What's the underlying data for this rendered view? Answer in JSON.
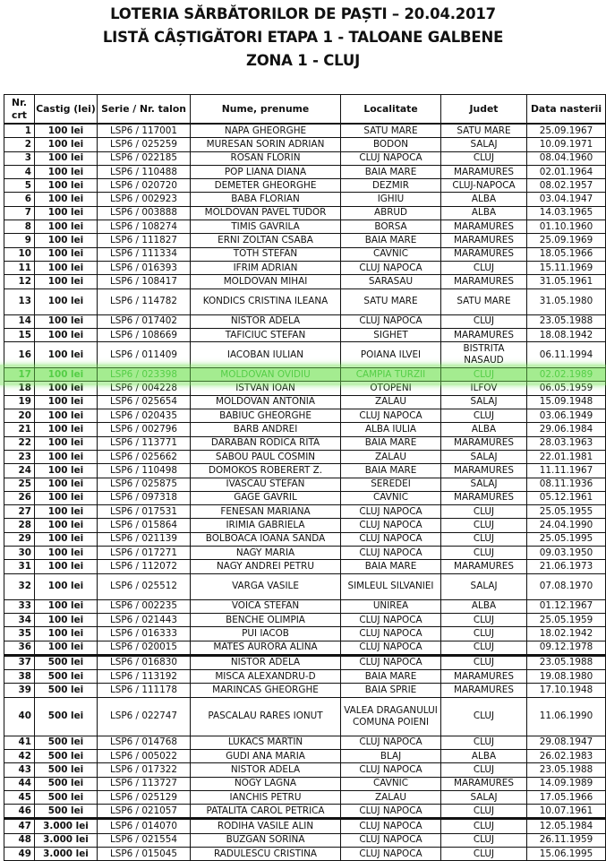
{
  "title": {
    "line1": "LOTERIA SĂRBĂTORILOR DE PAȘTI – 20.04.2017",
    "line2": "LISTĂ CÂȘTIGĂTORI ETAPA 1 - TALOANE GALBENE",
    "line3": "ZONA 1 - CLUJ"
  },
  "highlight": {
    "row_nr": "17",
    "color": "#4cd13a"
  },
  "table": {
    "headers": [
      "Nr. crt",
      "Castig (lei)",
      "Serie / Nr. talon",
      "Nume, prenume",
      "Localitate",
      "Judet",
      "Data nasterii"
    ],
    "rows": [
      [
        "1",
        "100 lei",
        "LSP6 / 117001",
        "NAPA GHEORGHE",
        "SATU MARE",
        "SATU MARE",
        "25.09.1967"
      ],
      [
        "2",
        "100 lei",
        "LSP6 / 025259",
        "MURESAN SORIN ADRIAN",
        "BODON",
        "SALAJ",
        "10.09.1971"
      ],
      [
        "3",
        "100 lei",
        "LSP6 / 022185",
        "ROSAN FLORIN",
        "CLUJ NAPOCA",
        "CLUJ",
        "08.04.1960"
      ],
      [
        "4",
        "100 lei",
        "LSP6 / 110488",
        "POP LIANA DIANA",
        "BAIA MARE",
        "MARAMURES",
        "02.01.1964"
      ],
      [
        "5",
        "100 lei",
        "LSP6 / 020720",
        "DEMETER GHEORGHE",
        "DEZMIR",
        "CLUJ-NAPOCA",
        "08.02.1957"
      ],
      [
        "6",
        "100 lei",
        "LSP6 / 002923",
        "BABA FLORIAN",
        "IGHIU",
        "ALBA",
        "03.04.1947"
      ],
      [
        "7",
        "100 lei",
        "LSP6 / 003888",
        "MOLDOVAN PAVEL TUDOR",
        "ABRUD",
        "ALBA",
        "14.03.1965"
      ],
      [
        "8",
        "100 lei",
        "LSP6 / 108274",
        "TIMIS GAVRILA",
        "BORSA",
        "MARAMURES",
        "01.10.1960"
      ],
      [
        "9",
        "100 lei",
        "LSP6 / 111827",
        "ERNI ZOLTAN CSABA",
        "BAIA MARE",
        "MARAMURES",
        "25.09.1969"
      ],
      [
        "10",
        "100 lei",
        "LSP6 / 111334",
        "TOTH STEFAN",
        "CAVNIC",
        "MARAMURES",
        "18.05.1966"
      ],
      [
        "11",
        "100 lei",
        "LSP6 / 016393",
        "IFRIM ADRIAN",
        "CLUJ NAPOCA",
        "CLUJ",
        "15.11.1969"
      ],
      [
        "12",
        "100 lei",
        "LSP6 / 108417",
        "MOLDOVAN MIHAI",
        "SARASAU",
        "MARAMURES",
        "31.05.1961"
      ],
      [
        "13",
        "100 lei",
        "LSP6 / 114782",
        "KONDICS CRISTINA ILEANA",
        "SATU MARE",
        "SATU MARE",
        "31.05.1980"
      ],
      [
        "14",
        "100 lei",
        "LSP6 / 017402",
        "NISTOR ADELA",
        "CLUJ NAPOCA",
        "CLUJ",
        "23.05.1988"
      ],
      [
        "15",
        "100 lei",
        "LSP6 / 108669",
        "TAFICIUC STEFAN",
        "SIGHET",
        "MARAMURES",
        "18.08.1942"
      ],
      [
        "16",
        "100 lei",
        "LSP6 / 011409",
        "IACOBAN IULIAN",
        "POIANA ILVEI",
        "BISTRITA NASAUD",
        "06.11.1994"
      ],
      [
        "17",
        "100 lei",
        "LSP6 / 023398",
        "MOLDOVAN OVIDIU",
        "CAMPIA TURZII",
        "CLUJ",
        "02.02.1989"
      ],
      [
        "18",
        "100 lei",
        "LSP6 / 004228",
        "ISTVAN IOAN",
        "OTOPENI",
        "ILFOV",
        "06.05.1959"
      ],
      [
        "19",
        "100 lei",
        "LSP6 / 025654",
        "MOLDOVAN ANTONIA",
        "ZALAU",
        "SALAJ",
        "15.09.1948"
      ],
      [
        "20",
        "100 lei",
        "LSP6 / 020435",
        "BABIUC GHEORGHE",
        "CLUJ NAPOCA",
        "CLUJ",
        "03.06.1949"
      ],
      [
        "21",
        "100 lei",
        "LSP6 / 002796",
        "BARB ANDREI",
        "ALBA IULIA",
        "ALBA",
        "29.06.1984"
      ],
      [
        "22",
        "100 lei",
        "LSP6 / 113771",
        "DARABAN RODICA RITA",
        "BAIA MARE",
        "MARAMURES",
        "28.03.1963"
      ],
      [
        "23",
        "100 lei",
        "LSP6 / 025662",
        "SABOU PAUL COSMIN",
        "ZALAU",
        "SALAJ",
        "22.01.1981"
      ],
      [
        "24",
        "100 lei",
        "LSP6 / 110498",
        "DOMOKOS ROBERERT Z.",
        "BAIA MARE",
        "MARAMURES",
        "11.11.1967"
      ],
      [
        "25",
        "100 lei",
        "LSP6 / 025875",
        "IVASCAU STEFAN",
        "SEREDEI",
        "SALAJ",
        "08.11.1936"
      ],
      [
        "26",
        "100 lei",
        "LSP6 / 097318",
        "GAGE GAVRIL",
        "CAVNIC",
        "MARAMURES",
        "05.12.1961"
      ],
      [
        "27",
        "100 lei",
        "LSP6 / 017531",
        "FENESAN MARIANA",
        "CLUJ NAPOCA",
        "CLUJ",
        "25.05.1955"
      ],
      [
        "28",
        "100 lei",
        "LSP6 / 015864",
        "IRIMIA GABRIELA",
        "CLUJ NAPOCA",
        "CLUJ",
        "24.04.1990"
      ],
      [
        "29",
        "100 lei",
        "LSP6 / 021139",
        "BOLBOACA IOANA SANDA",
        "CLUJ NAPOCA",
        "CLUJ",
        "25.05.1995"
      ],
      [
        "30",
        "100 lei",
        "LSP6 / 017271",
        "NAGY MARIA",
        "CLUJ NAPOCA",
        "CLUJ",
        "09.03.1950"
      ],
      [
        "31",
        "100 lei",
        "LSP6 / 112072",
        "NAGY ANDREI PETRU",
        "BAIA MARE",
        "MARAMURES",
        "21.06.1973"
      ],
      [
        "32",
        "100 lei",
        "LSP6 / 025512",
        "VARGA VASILE",
        "SIMLEUL SILVANIEI",
        "SALAJ",
        "07.08.1970"
      ],
      [
        "33",
        "100 lei",
        "LSP6 / 002235",
        "VOICA STEFAN",
        "UNIREA",
        "ALBA",
        "01.12.1967"
      ],
      [
        "34",
        "100 lei",
        "LSP6 / 021443",
        "BENCHE OLIMPIA",
        "CLUJ NAPOCA",
        "CLUJ",
        "25.05.1959"
      ],
      [
        "35",
        "100 lei",
        "LSP6 / 016333",
        "PUI IACOB",
        "CLUJ NAPOCA",
        "CLUJ",
        "18.02.1942"
      ],
      [
        "36",
        "100 lei",
        "LSP6 / 020015",
        "MATES AURORA ALINA",
        "CLUJ NAPOCA",
        "CLUJ",
        "09.12.1978"
      ],
      [
        "37",
        "500 lei",
        "LSP6 / 016830",
        "NISTOR ADELA",
        "CLUJ NAPOCA",
        "CLUJ",
        "23.05.1988"
      ],
      [
        "38",
        "500 lei",
        "LSP6 / 113192",
        "MISCA ALEXANDRU-D",
        "BAIA MARE",
        "MARAMURES",
        "19.08.1980"
      ],
      [
        "39",
        "500 lei",
        "LSP6 / 111178",
        "MARINCAS GHEORGHE",
        "BAIA SPRIE",
        "MARAMURES",
        "17.10.1948"
      ],
      [
        "40",
        "500 lei",
        "LSP6 / 022747",
        "PASCALAU RARES IONUT",
        "VALEA DRAGANULUI COMUNA POIENI",
        "CLUJ",
        "11.06.1990"
      ],
      [
        "41",
        "500 lei",
        "LSP6 / 014768",
        "LUKACS MARTIN",
        "CLUJ NAPOCA",
        "CLUJ",
        "29.08.1947"
      ],
      [
        "42",
        "500 lei",
        "LSP6 / 005022",
        "GUDI ANA MARIA",
        "BLAJ",
        "ALBA",
        "26.02.1983"
      ],
      [
        "43",
        "500 lei",
        "LSP6 / 017322",
        "NISTOR ADELA",
        "CLUJ NAPOCA",
        "CLUJ",
        "23.05.1988"
      ],
      [
        "44",
        "500 lei",
        "LSP6 / 113727",
        "NOGY  LAGNA",
        "CAVNIC",
        "MARAMURES",
        "14.09.1989"
      ],
      [
        "45",
        "500 lei",
        "LSP6 / 025129",
        "IANCHIS PETRU",
        "ZALAU",
        "SALAJ",
        "17.05.1966"
      ],
      [
        "46",
        "500 lei",
        "LSP6 / 021057",
        "PATALITA CAROL PETRICA",
        "CLUJ NAPOCA",
        "CLUJ",
        "10.07.1961"
      ],
      [
        "47",
        "3.000 lei",
        "LSP6 / 014070",
        "RODIHA VASILE ALIN",
        "CLUJ NAPOCA",
        "CLUJ",
        "12.05.1984"
      ],
      [
        "48",
        "3.000 lei",
        "LSP6 / 021554",
        "BUZGAN SORINA",
        "CLUJ NAPOCA",
        "CLUJ",
        "26.11.1959"
      ],
      [
        "49",
        "3.000 lei",
        "LSP6 / 015045",
        "RADULESCU CRISTINA",
        "CLUJ NAPOCA",
        "CLUJ",
        "15.06.1995"
      ]
    ]
  }
}
